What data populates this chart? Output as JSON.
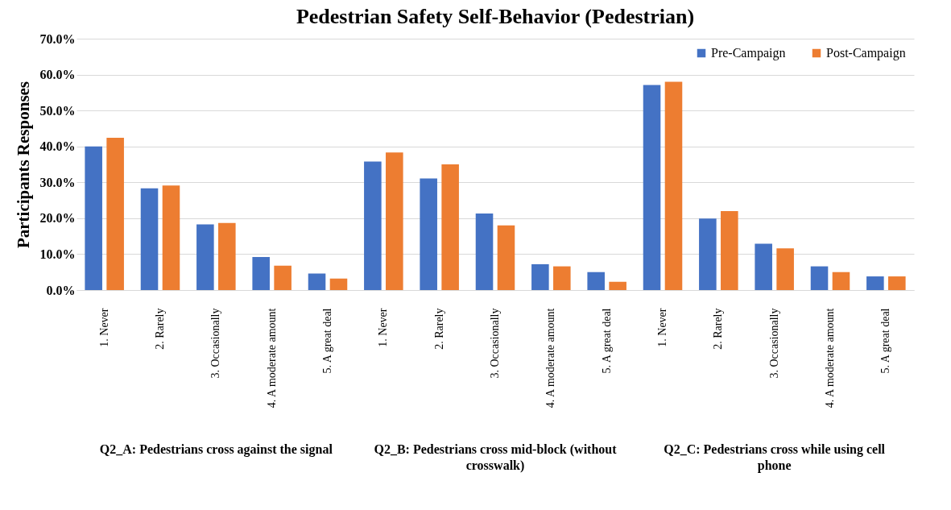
{
  "chart_data": {
    "type": "bar",
    "title": "Pedestrian Safety Self-Behavior (Pedestrian)",
    "ylabel": "Participants Responses",
    "categories": [
      "1. Never",
      "2. Rarely",
      "3. Occasionally",
      "4. A moderate amount",
      "5. A great deal",
      "1. Never",
      "2. Rarely",
      "3. Occasionally",
      "4. A moderate amount",
      "5. A great deal",
      "1. Never",
      "2. Rarely",
      "3. Occasionally",
      "4. A moderate amount",
      "5. A great deal"
    ],
    "series": [
      {
        "name": "Pre-Campaign",
        "color": "#4472c4",
        "values": [
          40.0,
          28.3,
          18.3,
          9.2,
          4.6,
          35.8,
          31.1,
          21.3,
          7.2,
          5.0,
          57.1,
          19.9,
          12.9,
          6.6,
          3.8
        ]
      },
      {
        "name": "Post-Campaign",
        "color": "#ed7d31",
        "values": [
          42.4,
          29.1,
          18.7,
          6.8,
          3.2,
          38.3,
          35.0,
          18.0,
          6.6,
          2.3,
          58.0,
          22.0,
          11.6,
          5.0,
          3.8
        ]
      }
    ],
    "ylim": [
      0,
      70
    ],
    "yticks": [
      {
        "value": 0,
        "label": "0.0%"
      },
      {
        "value": 10,
        "label": "10.0%"
      },
      {
        "value": 20,
        "label": "20.0%"
      },
      {
        "value": 30,
        "label": "30.0%"
      },
      {
        "value": 40,
        "label": "40.0%"
      },
      {
        "value": 50,
        "label": "50.0%"
      },
      {
        "value": 60,
        "label": "60.0%"
      },
      {
        "value": 70,
        "label": "70.0%"
      }
    ],
    "grid": "y",
    "legend": "top right",
    "annotations": [
      "Q2_A: Pedestrians cross against the signal",
      "Q2_B: Pedestrians cross mid-block (without crosswalk)",
      "Q2_C: Pedestrians cross while using cell phone"
    ]
  }
}
